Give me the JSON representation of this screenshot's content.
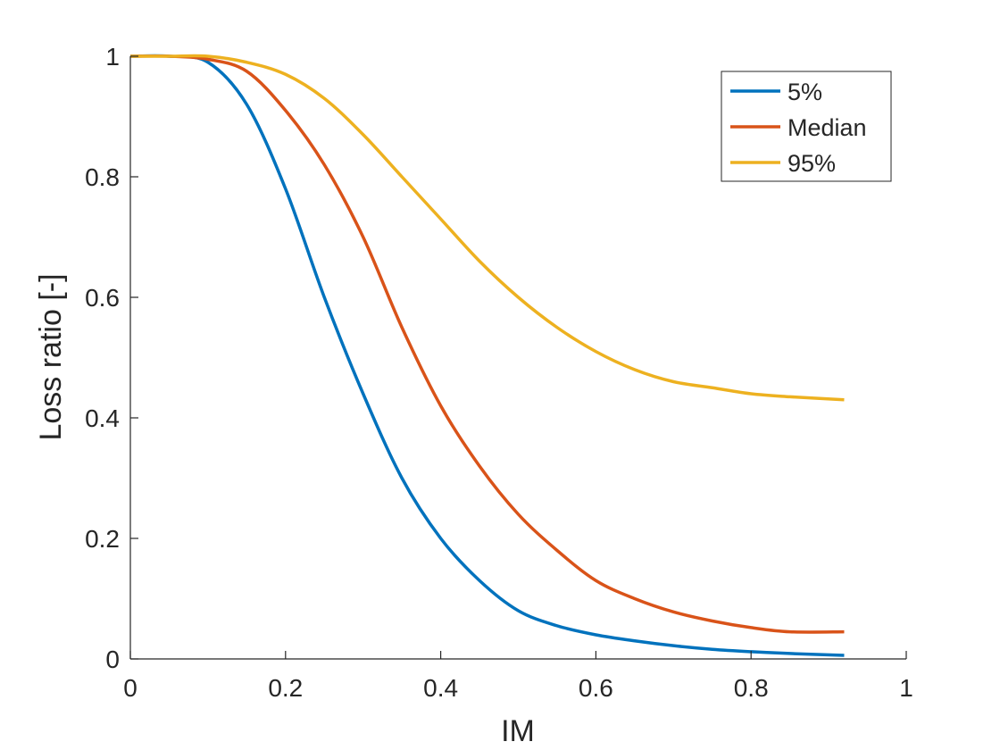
{
  "chart_data": {
    "type": "line",
    "xlabel": "IM",
    "ylabel": "Loss ratio [-]",
    "xlim": [
      0,
      1
    ],
    "ylim": [
      0,
      1
    ],
    "xticks": [
      "0",
      "0.2",
      "0.4",
      "0.6",
      "0.8",
      "1"
    ],
    "yticks": [
      "0",
      "0.2",
      "0.4",
      "0.6",
      "0.8",
      "1"
    ],
    "grid": false,
    "legend_position": "top-right",
    "x": [
      0,
      0.05,
      0.1,
      0.15,
      0.2,
      0.25,
      0.3,
      0.35,
      0.4,
      0.45,
      0.5,
      0.55,
      0.6,
      0.65,
      0.7,
      0.75,
      0.8,
      0.85,
      0.92
    ],
    "series": [
      {
        "name": "5%",
        "color": "#0072BD",
        "values": [
          1.0,
          1.0,
          0.99,
          0.92,
          0.78,
          0.6,
          0.44,
          0.3,
          0.2,
          0.13,
          0.08,
          0.055,
          0.04,
          0.03,
          0.022,
          0.016,
          0.012,
          0.009,
          0.006
        ]
      },
      {
        "name": "Median",
        "color": "#D95319",
        "values": [
          1.0,
          1.0,
          0.995,
          0.975,
          0.91,
          0.82,
          0.7,
          0.55,
          0.42,
          0.32,
          0.24,
          0.18,
          0.13,
          0.1,
          0.078,
          0.063,
          0.052,
          0.045,
          0.045
        ]
      },
      {
        "name": "95%",
        "color": "#EDB120",
        "values": [
          1.0,
          1.0,
          1.0,
          0.99,
          0.97,
          0.93,
          0.87,
          0.8,
          0.73,
          0.66,
          0.6,
          0.55,
          0.51,
          0.48,
          0.46,
          0.45,
          0.44,
          0.435,
          0.43
        ]
      }
    ]
  }
}
